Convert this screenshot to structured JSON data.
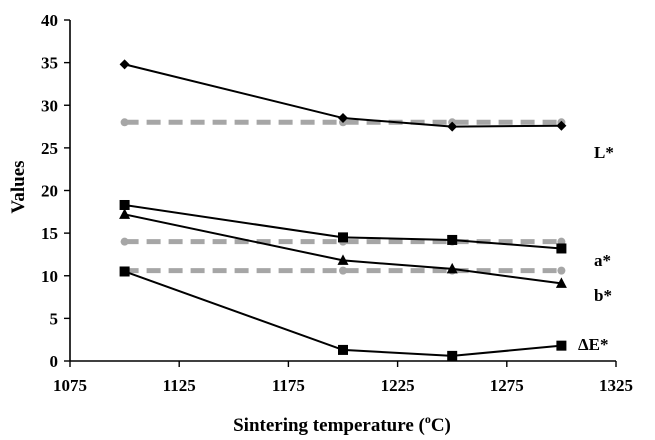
{
  "chart_data": {
    "type": "line",
    "xlabel": "Sintering temperature (",
    "xlabel_sup": "o",
    "xlabel_end": "C)",
    "ylabel": "Values",
    "xlim": [
      1075,
      1325
    ],
    "ylim": [
      0,
      40
    ],
    "xticks": [
      "1075",
      "1125",
      "1175",
      "1225",
      "1275",
      "1325"
    ],
    "yticks": [
      "0",
      "5",
      "10",
      "15",
      "20",
      "25",
      "30",
      "35",
      "40"
    ],
    "grid": false,
    "series": [
      {
        "name": "L*",
        "marker": "diamond",
        "x": [
          1100,
          1200,
          1250,
          1300
        ],
        "y": [
          34.8,
          28.5,
          27.5,
          27.6
        ]
      },
      {
        "name": "a*",
        "marker": "square",
        "x": [
          1100,
          1200,
          1250,
          1300
        ],
        "y": [
          18.3,
          14.5,
          14.2,
          13.2
        ]
      },
      {
        "name": "b*",
        "marker": "triangle",
        "x": [
          1100,
          1200,
          1250,
          1300
        ],
        "y": [
          17.2,
          11.8,
          10.8,
          9.1
        ]
      },
      {
        "name": "ΔE*",
        "marker": "square",
        "x": [
          1100,
          1200,
          1250,
          1300
        ],
        "y": [
          10.5,
          1.3,
          0.6,
          1.8
        ]
      }
    ],
    "reference_series": [
      {
        "marker": "circle",
        "color": "#a6a6a6",
        "x": [
          1100,
          1200,
          1250,
          1300
        ],
        "y": [
          28,
          28,
          28,
          28
        ]
      },
      {
        "marker": "circle",
        "color": "#a6a6a6",
        "x": [
          1100,
          1200,
          1250,
          1300
        ],
        "y": [
          14,
          14,
          14,
          14
        ]
      },
      {
        "marker": "circle",
        "color": "#a6a6a6",
        "x": [
          1100,
          1200,
          1250,
          1300
        ],
        "y": [
          10.6,
          10.6,
          10.6,
          10.6
        ]
      }
    ],
    "colors": {
      "series": "#000000",
      "reference": "#a6a6a6"
    }
  }
}
